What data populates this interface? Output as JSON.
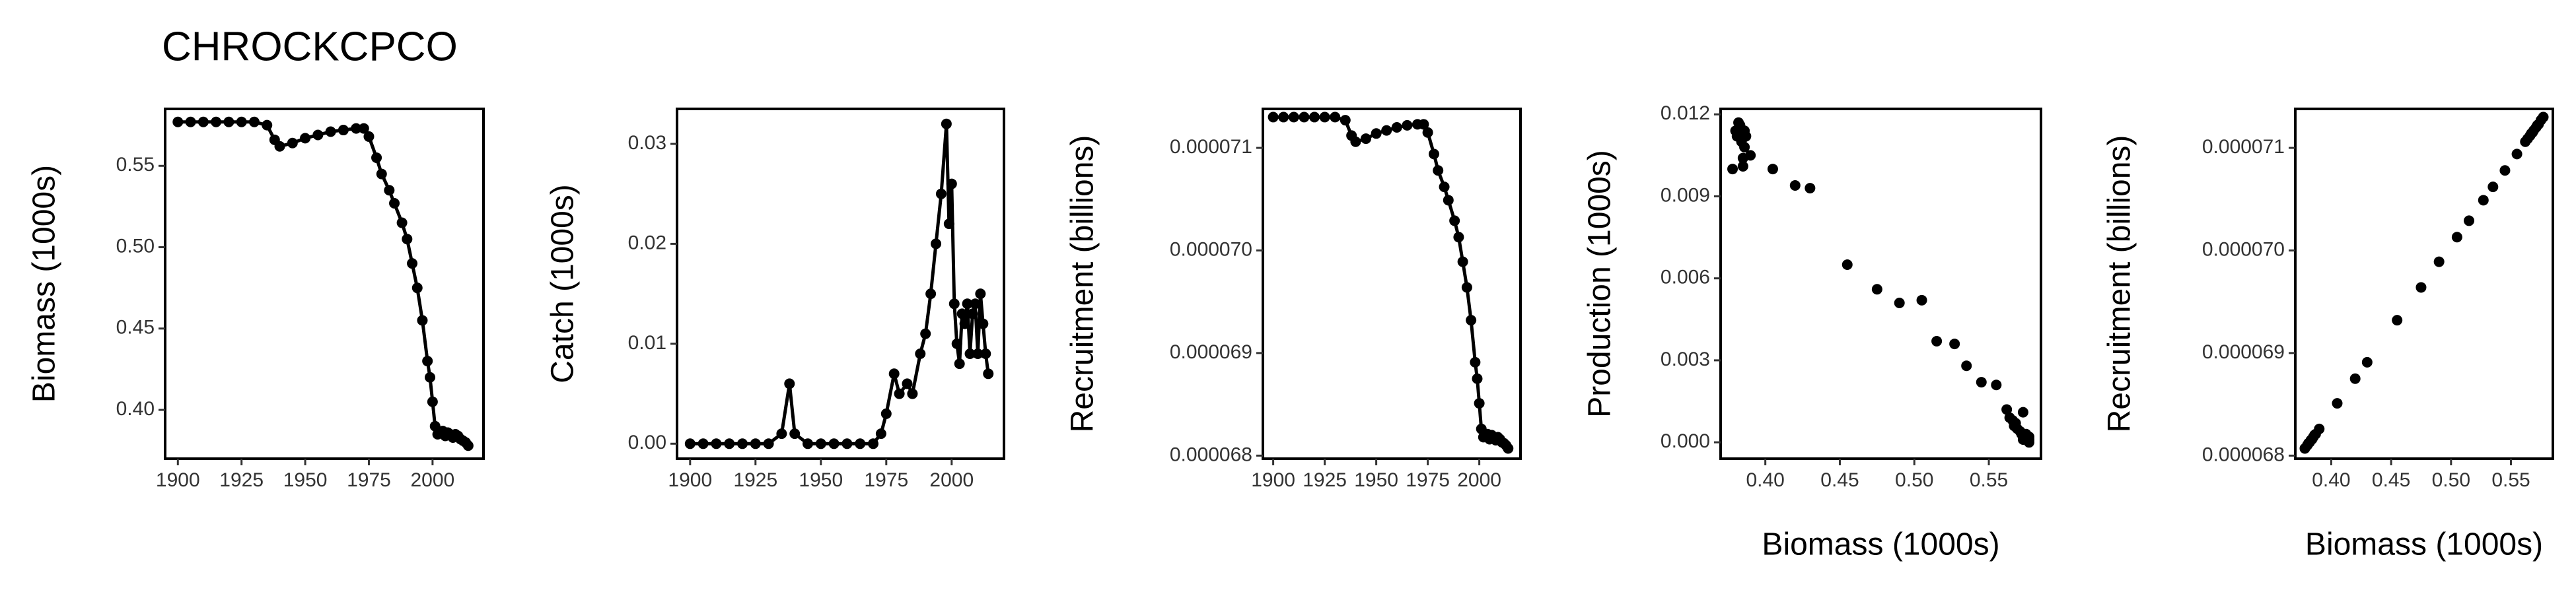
{
  "chart_data": [
    {
      "type": "line",
      "title": "CHROCKCPCO",
      "ylabel": "Biomass (1000s)",
      "x": [
        1900,
        1905,
        1910,
        1915,
        1920,
        1925,
        1930,
        1935,
        1938,
        1940,
        1945,
        1950,
        1955,
        1960,
        1965,
        1970,
        1973,
        1975,
        1978,
        1980,
        1983,
        1985,
        1988,
        1990,
        1992,
        1994,
        1996,
        1998,
        1999,
        2000,
        2001,
        2002,
        2003,
        2004,
        2005,
        2006,
        2007,
        2008,
        2009,
        2010,
        2011,
        2012,
        2013,
        2014
      ],
      "values": [
        0.577,
        0.577,
        0.577,
        0.577,
        0.577,
        0.577,
        0.577,
        0.575,
        0.566,
        0.562,
        0.564,
        0.567,
        0.569,
        0.571,
        0.572,
        0.573,
        0.573,
        0.568,
        0.555,
        0.545,
        0.535,
        0.527,
        0.515,
        0.505,
        0.49,
        0.475,
        0.455,
        0.43,
        0.42,
        0.405,
        0.39,
        0.385,
        0.386,
        0.387,
        0.384,
        0.386,
        0.385,
        0.383,
        0.385,
        0.384,
        0.382,
        0.381,
        0.38,
        0.378
      ],
      "color": "#000000",
      "xlim": [
        1895,
        2020
      ],
      "xticks": [
        1900,
        1925,
        1950,
        1975,
        2000
      ],
      "ylim": [
        0.37,
        0.585
      ],
      "yticks": [
        {
          "value": 0.4,
          "label": "0.40"
        },
        0.45,
        {
          "value": 0.5,
          "label": "0.50"
        },
        0.55
      ]
    },
    {
      "type": "line",
      "ylabel": "Catch (1000s)",
      "x": [
        1900,
        1905,
        1910,
        1915,
        1920,
        1925,
        1930,
        1935,
        1938,
        1940,
        1945,
        1950,
        1955,
        1960,
        1965,
        1970,
        1973,
        1975,
        1978,
        1980,
        1983,
        1985,
        1988,
        1990,
        1992,
        1994,
        1996,
        1998,
        1999,
        2000,
        2001,
        2002,
        2003,
        2004,
        2005,
        2006,
        2007,
        2008,
        2009,
        2010,
        2011,
        2012,
        2013,
        2014
      ],
      "values": [
        0,
        0,
        0,
        0,
        0,
        0,
        0,
        0.001,
        0.006,
        0.001,
        0,
        0,
        0,
        0,
        0,
        0,
        0.001,
        0.003,
        0.007,
        0.005,
        0.006,
        0.005,
        0.009,
        0.011,
        0.015,
        0.02,
        0.025,
        0.032,
        0.022,
        0.026,
        0.014,
        0.01,
        0.008,
        0.013,
        0.012,
        0.014,
        0.009,
        0.013,
        0.014,
        0.009,
        0.015,
        0.012,
        0.009,
        0.007
      ],
      "color": "#000000",
      "xlim": [
        1895,
        2020
      ],
      "xticks": [
        1900,
        1925,
        1950,
        1975,
        2000
      ],
      "ylim": [
        -0.0015,
        0.0335
      ],
      "yticks": [
        {
          "value": 0,
          "label": "0.00"
        },
        {
          "value": 0.01,
          "label": "0.01"
        },
        {
          "value": 0.02,
          "label": "0.02"
        },
        {
          "value": 0.03,
          "label": "0.03"
        }
      ]
    },
    {
      "type": "line",
      "ylabel": "Recruitment (billions)",
      "x": [
        1900,
        1905,
        1910,
        1915,
        1920,
        1925,
        1930,
        1935,
        1938,
        1940,
        1945,
        1950,
        1955,
        1960,
        1965,
        1970,
        1973,
        1975,
        1978,
        1980,
        1983,
        1985,
        1988,
        1990,
        1992,
        1994,
        1996,
        1998,
        1999,
        2000,
        2001,
        2002,
        2003,
        2004,
        2005,
        2006,
        2007,
        2008,
        2009,
        2010,
        2011,
        2012,
        2013,
        2014
      ],
      "values": [
        7.13e-05,
        7.13e-05,
        7.13e-05,
        7.13e-05,
        7.13e-05,
        7.13e-05,
        7.13e-05,
        7.127e-05,
        7.112e-05,
        7.106e-05,
        7.109e-05,
        7.114e-05,
        7.117e-05,
        7.12e-05,
        7.122e-05,
        7.123e-05,
        7.123e-05,
        7.115e-05,
        7.094e-05,
        7.078e-05,
        7.062e-05,
        7.049e-05,
        7.029e-05,
        7.013e-05,
        6.989e-05,
        6.964e-05,
        6.932e-05,
        6.891e-05,
        6.875e-05,
        6.851e-05,
        6.826e-05,
        6.818e-05,
        6.82e-05,
        6.821e-05,
        6.816e-05,
        6.82e-05,
        6.818e-05,
        6.815e-05,
        6.818e-05,
        6.816e-05,
        6.813e-05,
        6.812e-05,
        6.81e-05,
        6.807e-05
      ],
      "color": "#000000",
      "xlim": [
        1895,
        2020
      ],
      "xticks": [
        1900,
        1925,
        1950,
        1975,
        2000
      ],
      "ylim": [
        6.797e-05,
        7.138e-05
      ],
      "yticks": [
        {
          "value": 6.8e-05,
          "label": "0.000068"
        },
        {
          "value": 6.9e-05,
          "label": "0.000069"
        },
        {
          "value": 7e-05,
          "label": "0.000070"
        },
        {
          "value": 7.1e-05,
          "label": "0.000071"
        }
      ]
    },
    {
      "type": "scatter",
      "ylabel": "Production (1000s)",
      "xlabel": "Biomass (1000s)",
      "x": [
        0.577,
        0.577,
        0.577,
        0.577,
        0.577,
        0.577,
        0.577,
        0.575,
        0.566,
        0.562,
        0.564,
        0.567,
        0.569,
        0.571,
        0.572,
        0.573,
        0.573,
        0.568,
        0.555,
        0.545,
        0.535,
        0.527,
        0.515,
        0.505,
        0.49,
        0.475,
        0.455,
        0.43,
        0.42,
        0.405,
        0.39,
        0.385,
        0.386,
        0.387,
        0.384,
        0.386,
        0.385,
        0.383,
        0.385,
        0.384,
        0.382,
        0.381,
        0.38,
        0.378
      ],
      "values": [
        0,
        0.0001,
        0.0002,
        0.0001,
        0,
        0.0002,
        0.0001,
        0.0003,
        0.0008,
        0.0012,
        0.0009,
        0.0006,
        0.0005,
        0.0004,
        0.0003,
        0.0001,
        0.0011,
        0.0007,
        0.0021,
        0.0022,
        0.0028,
        0.0036,
        0.0037,
        0.0052,
        0.0051,
        0.0056,
        0.0065,
        0.0093,
        0.0094,
        0.01,
        0.0105,
        0.0113,
        0.0108,
        0.0112,
        0.011,
        0.0114,
        0.0101,
        0.0116,
        0.0104,
        0.0112,
        0.0117,
        0.0112,
        0.0114,
        0.01
      ],
      "color": "#000000",
      "xlim": [
        0.37,
        0.585
      ],
      "xticks": [
        {
          "value": 0.4,
          "label": "0.40"
        },
        0.45,
        {
          "value": 0.5,
          "label": "0.50"
        },
        0.55
      ],
      "ylim": [
        -0.0006,
        0.0122
      ],
      "yticks": [
        {
          "value": 0,
          "label": "0.000"
        },
        0.003,
        0.006,
        0.009,
        0.012
      ]
    },
    {
      "type": "scatter",
      "ylabel": "Recruitment (billions)",
      "xlabel": "Biomass (1000s)",
      "x": [
        0.577,
        0.575,
        0.566,
        0.562,
        0.564,
        0.567,
        0.569,
        0.571,
        0.572,
        0.573,
        0.568,
        0.555,
        0.545,
        0.535,
        0.527,
        0.515,
        0.505,
        0.49,
        0.475,
        0.455,
        0.43,
        0.42,
        0.405,
        0.39,
        0.385,
        0.386,
        0.387,
        0.384,
        0.383,
        0.382,
        0.381,
        0.38,
        0.378
      ],
      "values": [
        7.13e-05,
        7.127e-05,
        7.112e-05,
        7.106e-05,
        7.109e-05,
        7.114e-05,
        7.117e-05,
        7.12e-05,
        7.122e-05,
        7.123e-05,
        7.115e-05,
        7.094e-05,
        7.078e-05,
        7.062e-05,
        7.049e-05,
        7.029e-05,
        7.013e-05,
        6.989e-05,
        6.964e-05,
        6.932e-05,
        6.891e-05,
        6.875e-05,
        6.851e-05,
        6.826e-05,
        6.818e-05,
        6.82e-05,
        6.821e-05,
        6.816e-05,
        6.815e-05,
        6.813e-05,
        6.812e-05,
        6.81e-05,
        6.807e-05
      ],
      "color": "#000000",
      "xlim": [
        0.37,
        0.585
      ],
      "xticks": [
        {
          "value": 0.4,
          "label": "0.40"
        },
        0.45,
        {
          "value": 0.5,
          "label": "0.50"
        },
        0.55
      ],
      "ylim": [
        6.797e-05,
        7.138e-05
      ],
      "yticks": [
        {
          "value": 6.8e-05,
          "label": "0.000068"
        },
        {
          "value": 6.9e-05,
          "label": "0.000069"
        },
        {
          "value": 7e-05,
          "label": "0.000070"
        },
        {
          "value": 7.1e-05,
          "label": "0.000071"
        }
      ]
    }
  ]
}
